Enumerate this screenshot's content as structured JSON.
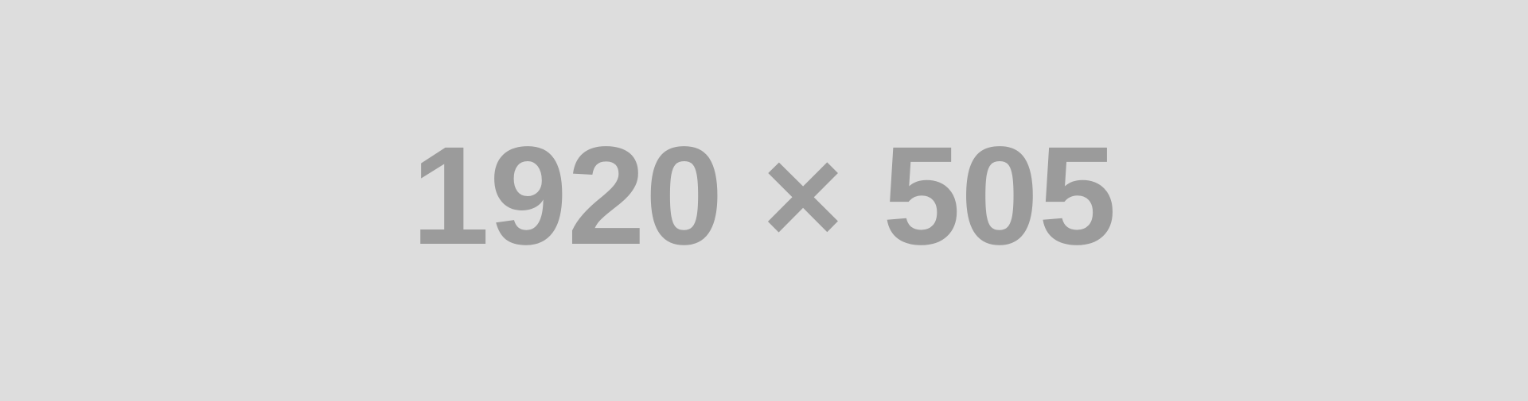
{
  "placeholder": {
    "label": "1920 × 505",
    "background_color": "#dddddd",
    "text_color": "#9b9b9b"
  }
}
